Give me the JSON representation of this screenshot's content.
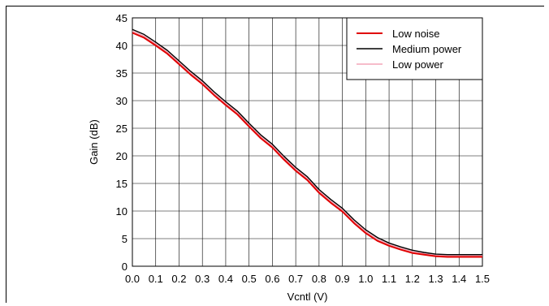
{
  "chart_data": {
    "type": "line",
    "title": "",
    "xlabel": "Vcntl (V)",
    "ylabel": "Gain (dB)",
    "xlim": [
      0.0,
      1.5
    ],
    "ylim": [
      0,
      45
    ],
    "xticks": [
      "0.0",
      "0.1",
      "0.2",
      "0.3",
      "0.4",
      "0.5",
      "0.6",
      "0.7",
      "0.8",
      "0.9",
      "1.0",
      "1.1",
      "1.2",
      "1.3",
      "1.4",
      "1.5"
    ],
    "yticks": [
      "0",
      "5",
      "10",
      "15",
      "20",
      "25",
      "30",
      "35",
      "40",
      "45"
    ],
    "grid": true,
    "legend_position": "top-right",
    "x": [
      0.0,
      0.05,
      0.1,
      0.15,
      0.2,
      0.25,
      0.3,
      0.35,
      0.4,
      0.45,
      0.5,
      0.55,
      0.6,
      0.65,
      0.7,
      0.75,
      0.8,
      0.85,
      0.9,
      0.95,
      1.0,
      1.05,
      1.1,
      1.15,
      1.2,
      1.25,
      1.3,
      1.35,
      1.4,
      1.45,
      1.5
    ],
    "series": [
      {
        "name": "Low noise",
        "color": "#e00000",
        "values": [
          42.3,
          41.4,
          40.0,
          38.5,
          36.6,
          34.7,
          33.0,
          31.0,
          29.2,
          27.5,
          25.3,
          23.2,
          21.5,
          19.3,
          17.3,
          15.6,
          13.3,
          11.5,
          9.9,
          7.8,
          6.0,
          4.6,
          3.7,
          3.0,
          2.4,
          2.1,
          1.8,
          1.7,
          1.7,
          1.7,
          1.7
        ]
      },
      {
        "name": "Medium power",
        "color": "#000000",
        "values": [
          42.9,
          42.0,
          40.6,
          39.1,
          37.2,
          35.3,
          33.6,
          31.6,
          29.8,
          28.1,
          25.9,
          23.8,
          22.1,
          19.9,
          17.9,
          16.2,
          13.9,
          12.1,
          10.5,
          8.4,
          6.6,
          5.2,
          4.2,
          3.5,
          2.9,
          2.5,
          2.2,
          2.1,
          2.1,
          2.1,
          2.1
        ]
      },
      {
        "name": "Low  power",
        "color": "#f4a6b8",
        "values": [
          42.6,
          41.7,
          40.3,
          38.8,
          36.9,
          35.0,
          33.3,
          31.3,
          29.5,
          27.8,
          25.6,
          23.5,
          21.8,
          19.6,
          17.6,
          15.9,
          13.6,
          11.8,
          10.2,
          8.1,
          6.3,
          4.9,
          3.95,
          3.25,
          2.65,
          2.3,
          2.0,
          1.9,
          1.9,
          1.9,
          1.9
        ]
      }
    ]
  }
}
